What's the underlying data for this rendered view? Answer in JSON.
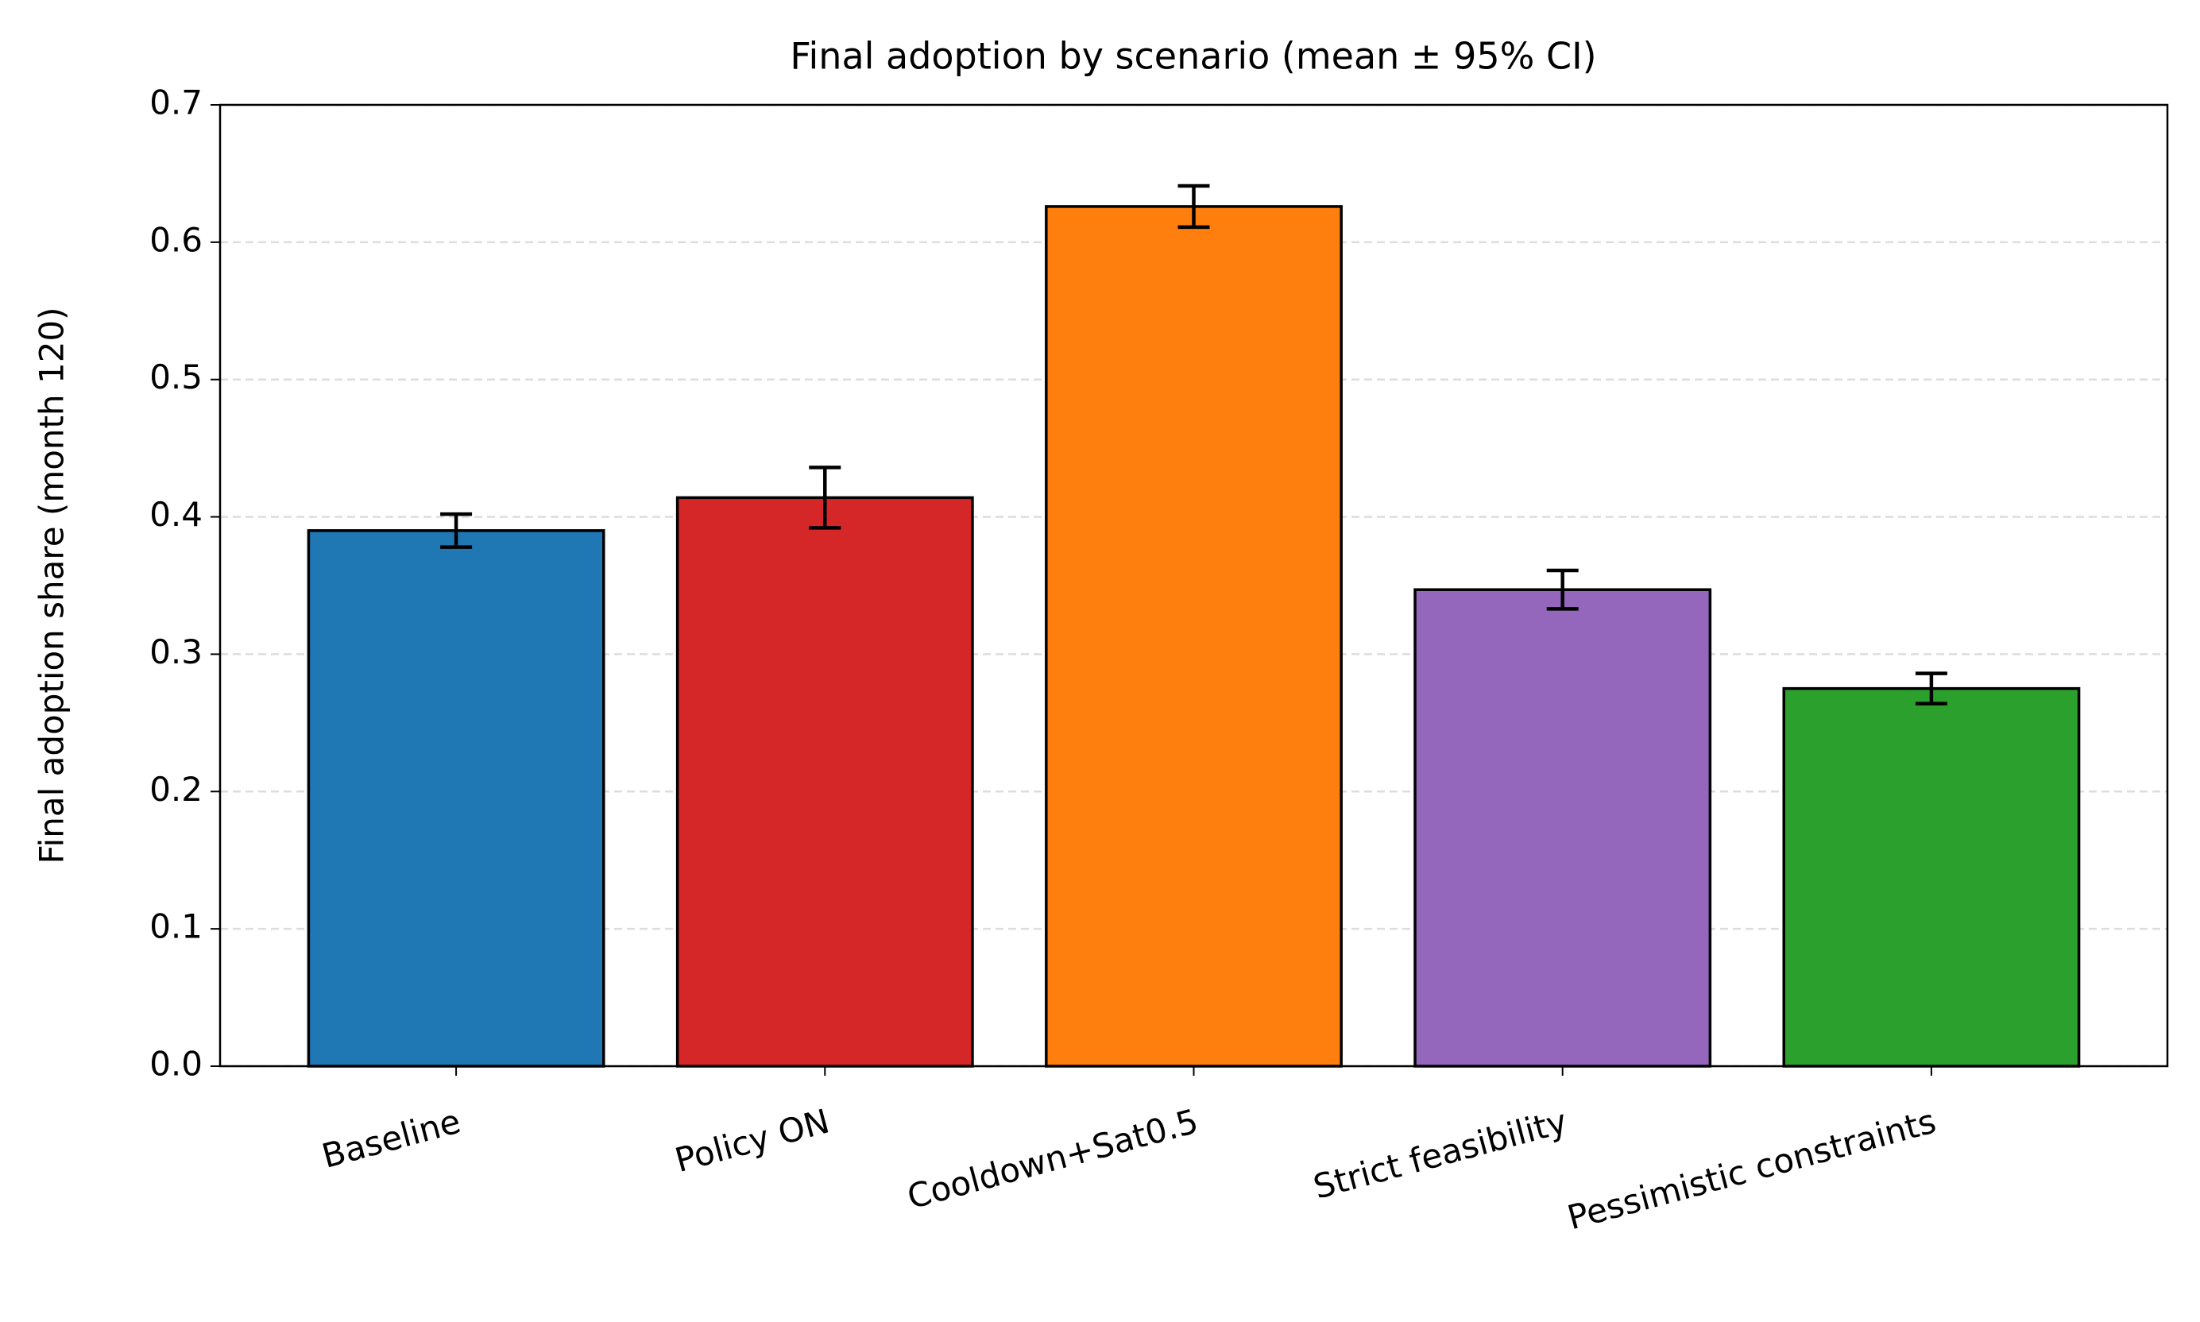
{
  "chart_data": {
    "type": "bar",
    "title": "Final adoption by scenario (mean ± 95% CI)",
    "y_label": "Final adoption share (month 120)",
    "categories": [
      "Baseline",
      "Policy ON",
      "Cooldown+Sat0.5",
      "Strict feasibility",
      "Pessimistic constraints"
    ],
    "values": [
      0.39,
      0.414,
      0.626,
      0.347,
      0.275
    ],
    "errors": [
      0.012,
      0.022,
      0.015,
      0.014,
      0.011
    ],
    "colors": [
      "#1f77b4",
      "#d62728",
      "#ff7f0e",
      "#9467bd",
      "#2ca02c"
    ],
    "ylim": [
      0,
      0.7
    ],
    "yticks": [
      {
        "value": 0,
        "label": "0.0"
      },
      0.1,
      0.2,
      0.3,
      0.4,
      0.5,
      0.6,
      0.7
    ],
    "grid": true
  }
}
